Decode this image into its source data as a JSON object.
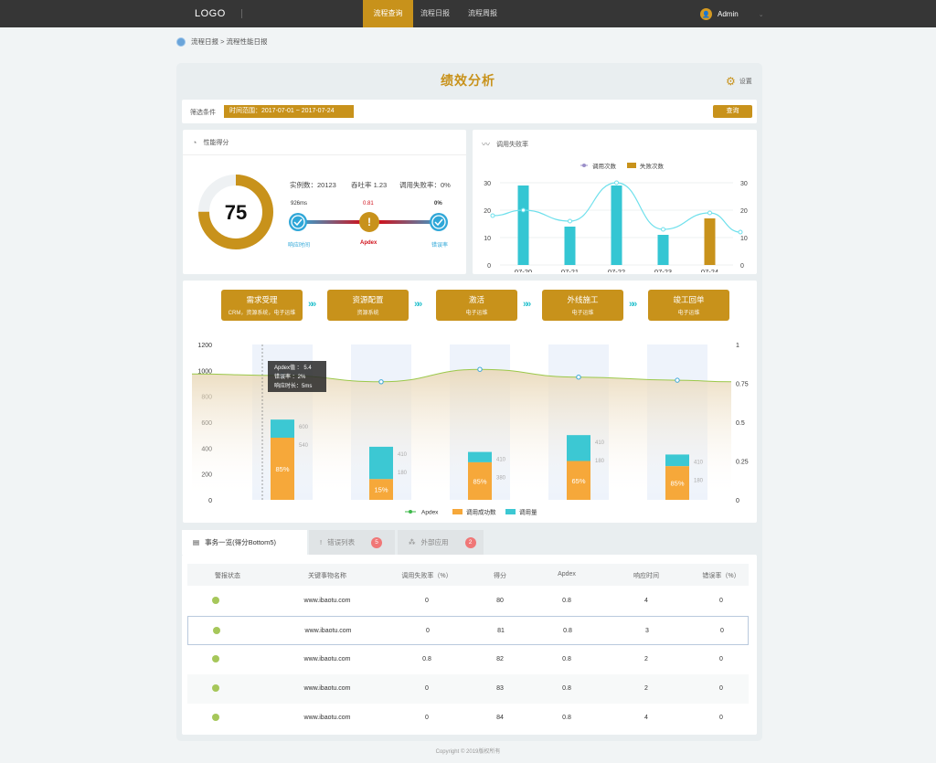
{
  "header": {
    "logo": "LOGO",
    "nav": [
      "流程查询",
      "流程日报",
      "流程周报"
    ],
    "user": "Admin"
  },
  "breadcrumb": "流程日报 > 流程性能日报",
  "page": {
    "title": "绩效分析",
    "settings": "设置"
  },
  "filter": {
    "label": "筛选条件",
    "tag": "时间范围：2017-07-01 ~ 2017-07-24",
    "button": "查询"
  },
  "score_card": {
    "title": "性能得分",
    "score": "75",
    "score_fraction": 0.75,
    "instances": "实例数：20123",
    "throughput": "吞吐率 1.23",
    "fail_rate": "调用失败率：0%",
    "perf": [
      {
        "value": "926ms",
        "label": "响应时间",
        "color": "#2fa7d8"
      },
      {
        "value": "0.81",
        "label": "Apdex",
        "color": "#d0111b"
      },
      {
        "value": "0%",
        "label": "错误率",
        "color": "#2fa7d8"
      }
    ]
  },
  "fail_chart": {
    "title": "调用失败率",
    "legend": [
      "调用次数",
      "失败次数"
    ]
  },
  "chart_data": [
    {
      "type": "bar",
      "title": "调用失败率",
      "categories": [
        "07-20",
        "07-21",
        "07-22",
        "07-23",
        "07-24"
      ],
      "series": [
        {
          "name": "调用次数",
          "values": [
            20,
            16,
            30,
            13,
            19
          ]
        },
        {
          "name": "失败次数",
          "values": [
            29,
            14,
            29,
            11,
            17
          ]
        }
      ],
      "ylim": [
        0,
        30
      ],
      "yticks": [
        "0",
        "10",
        "20",
        "30"
      ],
      "legend": "top-center",
      "colors": {
        "bar": "#34c6d3",
        "bar_last": "#c8921b",
        "line": "#6fe0ec"
      }
    },
    {
      "type": "bar",
      "categories": [
        "1",
        "2",
        "3",
        "4",
        "5"
      ],
      "series": [
        {
          "name": "调用成功数",
          "values": [
            480,
            160,
            290,
            300,
            260
          ],
          "labels": [
            "85%",
            "15%",
            "85%",
            "65%",
            "85%"
          ]
        },
        {
          "name": "调用量",
          "values": [
            620,
            410,
            370,
            500,
            350
          ]
        },
        {
          "name": "Apdex",
          "values": [
            0.8,
            0.76,
            0.84,
            0.79,
            0.77
          ]
        }
      ],
      "side_labels": [
        [
          "600",
          "540"
        ],
        [
          "410",
          "180"
        ],
        [
          "410",
          "380"
        ],
        [
          "410",
          "180"
        ],
        [
          "410",
          "180"
        ]
      ],
      "ylim": [
        0,
        1200
      ],
      "yticks": [
        "0",
        "200",
        "400",
        "600",
        "800",
        "1000",
        "1200"
      ],
      "y2ticks": [
        "0",
        "0.25",
        "0.5",
        "0.75",
        "1"
      ],
      "legend": "bottom-center",
      "tooltip": [
        "Apdex值 ： 5.4",
        "错误率 ：2%",
        "响应时长：5ms"
      ],
      "colors": {
        "success": "#f6a83a",
        "volume": "#3cc8d3",
        "apdex": "#9bc84a"
      }
    }
  ],
  "flow": {
    "steps": [
      {
        "title": "需求受理",
        "sub": "CRM，资源系统，电子运维"
      },
      {
        "title": "资源配置",
        "sub": "资源系统"
      },
      {
        "title": "激活",
        "sub": "电子运维"
      },
      {
        "title": "外线施工",
        "sub": "电子运维"
      },
      {
        "title": "竣工回单",
        "sub": "电子运维"
      }
    ],
    "arrow": "»»"
  },
  "tabs": [
    {
      "label": "事务一览(得分Bottom5)"
    },
    {
      "label": "错误列表",
      "badge": "5"
    },
    {
      "label": "外部应用",
      "badge": "2"
    }
  ],
  "table": {
    "headers": [
      "警报状态",
      "关键事物名称",
      "调用失败率（%）",
      "得分",
      "Apdex",
      "响应时间",
      "错误率（%）"
    ],
    "rows": [
      [
        "www.ibaotu.com",
        "0",
        "80",
        "0.8",
        "4",
        "0"
      ],
      [
        "www.ibaotu.com",
        "0",
        "81",
        "0.8",
        "3",
        "0"
      ],
      [
        "www.ibaotu.com",
        "0.8",
        "82",
        "0.8",
        "2",
        "0"
      ],
      [
        "www.ibaotu.com",
        "0",
        "83",
        "0.8",
        "2",
        "0"
      ],
      [
        "www.ibaotu.com",
        "0",
        "84",
        "0.8",
        "4",
        "0"
      ]
    ]
  },
  "footer": "Copyright © 2019版权所有"
}
